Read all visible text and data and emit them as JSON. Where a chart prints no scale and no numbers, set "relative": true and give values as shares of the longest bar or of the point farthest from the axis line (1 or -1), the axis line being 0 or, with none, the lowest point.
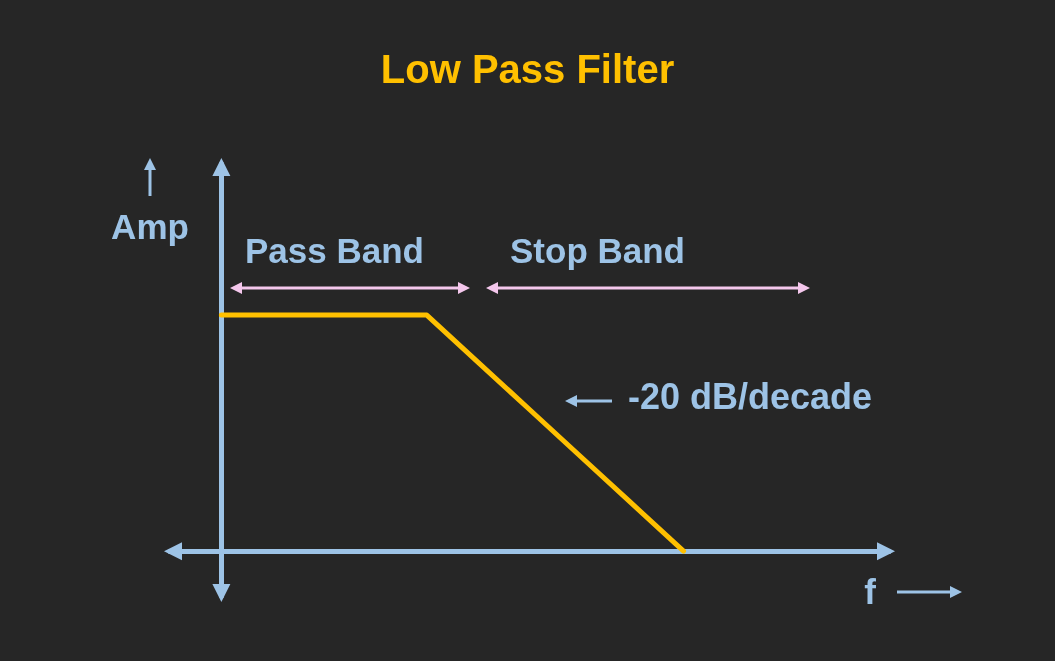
{
  "chart_data": {
    "type": "line",
    "title": "Low Pass Filter",
    "xlabel": "f",
    "ylabel": "Amp",
    "annotations": [
      "Pass Band",
      "Stop Band",
      "-20 dB/decade"
    ],
    "categories": [
      null,
      null,
      null,
      null,
      null,
      null,
      null,
      null,
      null,
      null,
      null,
      null,
      null,
      null,
      null
    ],
    "series": [
      {
        "color": "#ffc000",
        "values": [
          null,
          1,
          1,
          1,
          1,
          1,
          0.8,
          0.6,
          0.4,
          0.2,
          0,
          null,
          null,
          null,
          null
        ]
      }
    ],
    "relative": true,
    "marker": "none",
    "line_style": "solid"
  }
}
